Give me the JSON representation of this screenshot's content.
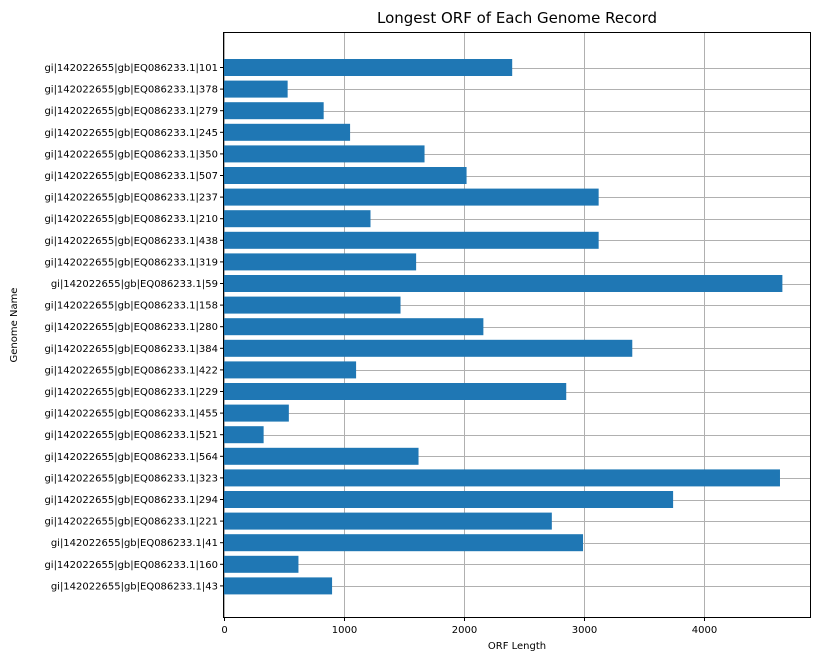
{
  "chart_data": {
    "type": "bar",
    "orientation": "horizontal",
    "title": "Longest ORF of Each Genome Record",
    "xlabel": "ORF Length",
    "ylabel": "Genome Name",
    "xlim": [
      0,
      4880
    ],
    "xticks": [
      0,
      1000,
      2000,
      3000,
      4000
    ],
    "grid": true,
    "bar_color": "#1f77b4",
    "categories": [
      "gi|142022655|gb|EQ086233.1|101",
      "gi|142022655|gb|EQ086233.1|378",
      "gi|142022655|gb|EQ086233.1|279",
      "gi|142022655|gb|EQ086233.1|245",
      "gi|142022655|gb|EQ086233.1|350",
      "gi|142022655|gb|EQ086233.1|507",
      "gi|142022655|gb|EQ086233.1|237",
      "gi|142022655|gb|EQ086233.1|210",
      "gi|142022655|gb|EQ086233.1|438",
      "gi|142022655|gb|EQ086233.1|319",
      "gi|142022655|gb|EQ086233.1|59",
      "gi|142022655|gb|EQ086233.1|158",
      "gi|142022655|gb|EQ086233.1|280",
      "gi|142022655|gb|EQ086233.1|384",
      "gi|142022655|gb|EQ086233.1|422",
      "gi|142022655|gb|EQ086233.1|229",
      "gi|142022655|gb|EQ086233.1|455",
      "gi|142022655|gb|EQ086233.1|521",
      "gi|142022655|gb|EQ086233.1|564",
      "gi|142022655|gb|EQ086233.1|323",
      "gi|142022655|gb|EQ086233.1|294",
      "gi|142022655|gb|EQ086233.1|221",
      "gi|142022655|gb|EQ086233.1|41",
      "gi|142022655|gb|EQ086233.1|160",
      "gi|142022655|gb|EQ086233.1|43"
    ],
    "values": [
      2400,
      530,
      830,
      1050,
      1670,
      2020,
      3120,
      1220,
      3120,
      1600,
      4650,
      1470,
      2160,
      3400,
      1100,
      2850,
      540,
      330,
      1620,
      4630,
      3740,
      2730,
      2990,
      620,
      900
    ]
  }
}
